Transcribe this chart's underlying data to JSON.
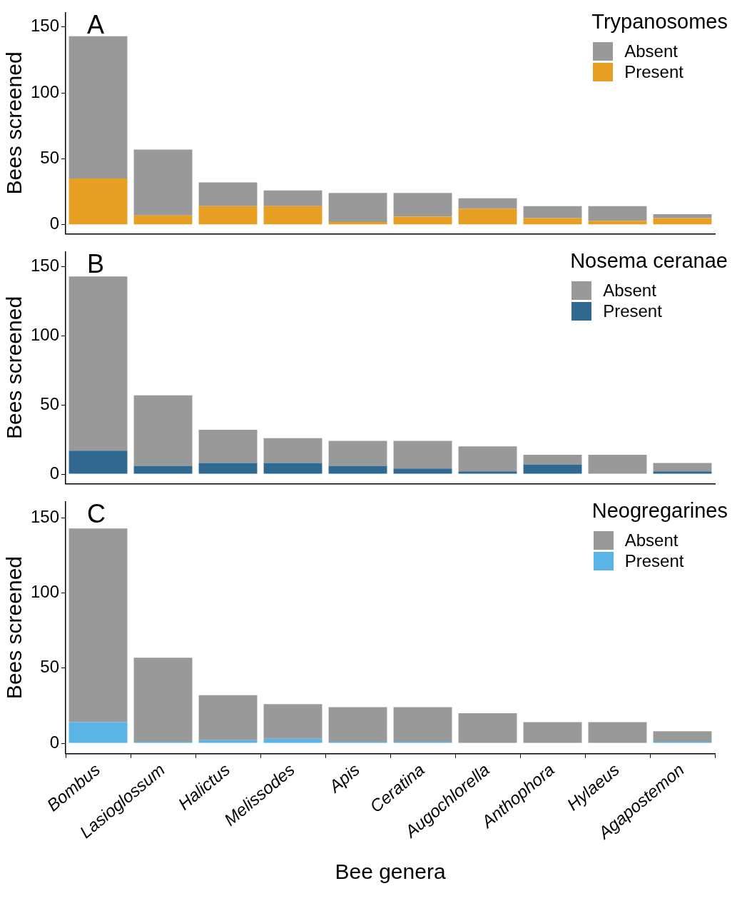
{
  "chart_data": [
    {
      "type": "bar",
      "stacked": true,
      "annotations": [
        "A"
      ],
      "ylabel": "Bees screened",
      "legend_title": "Trypanosomes",
      "legend": "top right",
      "grid": false,
      "tick_labels": "y",
      "ylim": [
        -7,
        161
      ],
      "yticks": [
        0,
        50,
        100,
        150
      ],
      "categories": [
        null,
        null,
        null,
        null,
        null,
        null,
        null,
        null,
        null,
        null
      ],
      "series": [
        {
          "name": "Present",
          "color": "#e69f22",
          "values": [
            35,
            7,
            14,
            14,
            2,
            6,
            12,
            5,
            3,
            5
          ]
        },
        {
          "name": "Absent",
          "color": "#999999",
          "values": [
            108,
            50,
            18,
            12,
            22,
            18,
            8,
            9,
            11,
            3
          ]
        }
      ]
    },
    {
      "type": "bar",
      "stacked": true,
      "annotations": [
        "B"
      ],
      "ylabel": "Bees screened",
      "legend_title": "Nosema ceranae",
      "legend": "top right",
      "grid": false,
      "tick_labels": "y",
      "ylim": [
        -7,
        161
      ],
      "yticks": [
        0,
        50,
        100,
        150
      ],
      "categories": [
        null,
        null,
        null,
        null,
        null,
        null,
        null,
        null,
        null,
        null
      ],
      "series": [
        {
          "name": "Present",
          "color": "#2f6890",
          "values": [
            17,
            6,
            8,
            8,
            6,
            4,
            2,
            7,
            0,
            2
          ]
        },
        {
          "name": "Absent",
          "color": "#999999",
          "values": [
            126,
            51,
            24,
            18,
            18,
            20,
            18,
            7,
            14,
            6
          ]
        }
      ]
    },
    {
      "type": "bar",
      "stacked": true,
      "annotations": [
        "C"
      ],
      "xlabel": "Bee genera",
      "ylabel": "Bees screened",
      "legend_title": "Neogregarines",
      "legend": "top right",
      "grid": false,
      "ylim": [
        -7,
        161
      ],
      "yticks": [
        0,
        50,
        100,
        150
      ],
      "categories": [
        "Bombus",
        "Lasioglossum",
        "Halictus",
        "Melissodes",
        "Apis",
        "Ceratina",
        "Augochlorella",
        "Anthophora",
        "Hylaeus",
        "Agapostemon"
      ],
      "series": [
        {
          "name": "Present",
          "color": "#5ab4e6",
          "values": [
            14,
            1,
            2,
            3,
            1,
            1,
            0,
            0,
            0,
            1
          ]
        },
        {
          "name": "Absent",
          "color": "#999999",
          "values": [
            129,
            56,
            30,
            23,
            23,
            23,
            20,
            14,
            14,
            7
          ]
        }
      ]
    }
  ]
}
